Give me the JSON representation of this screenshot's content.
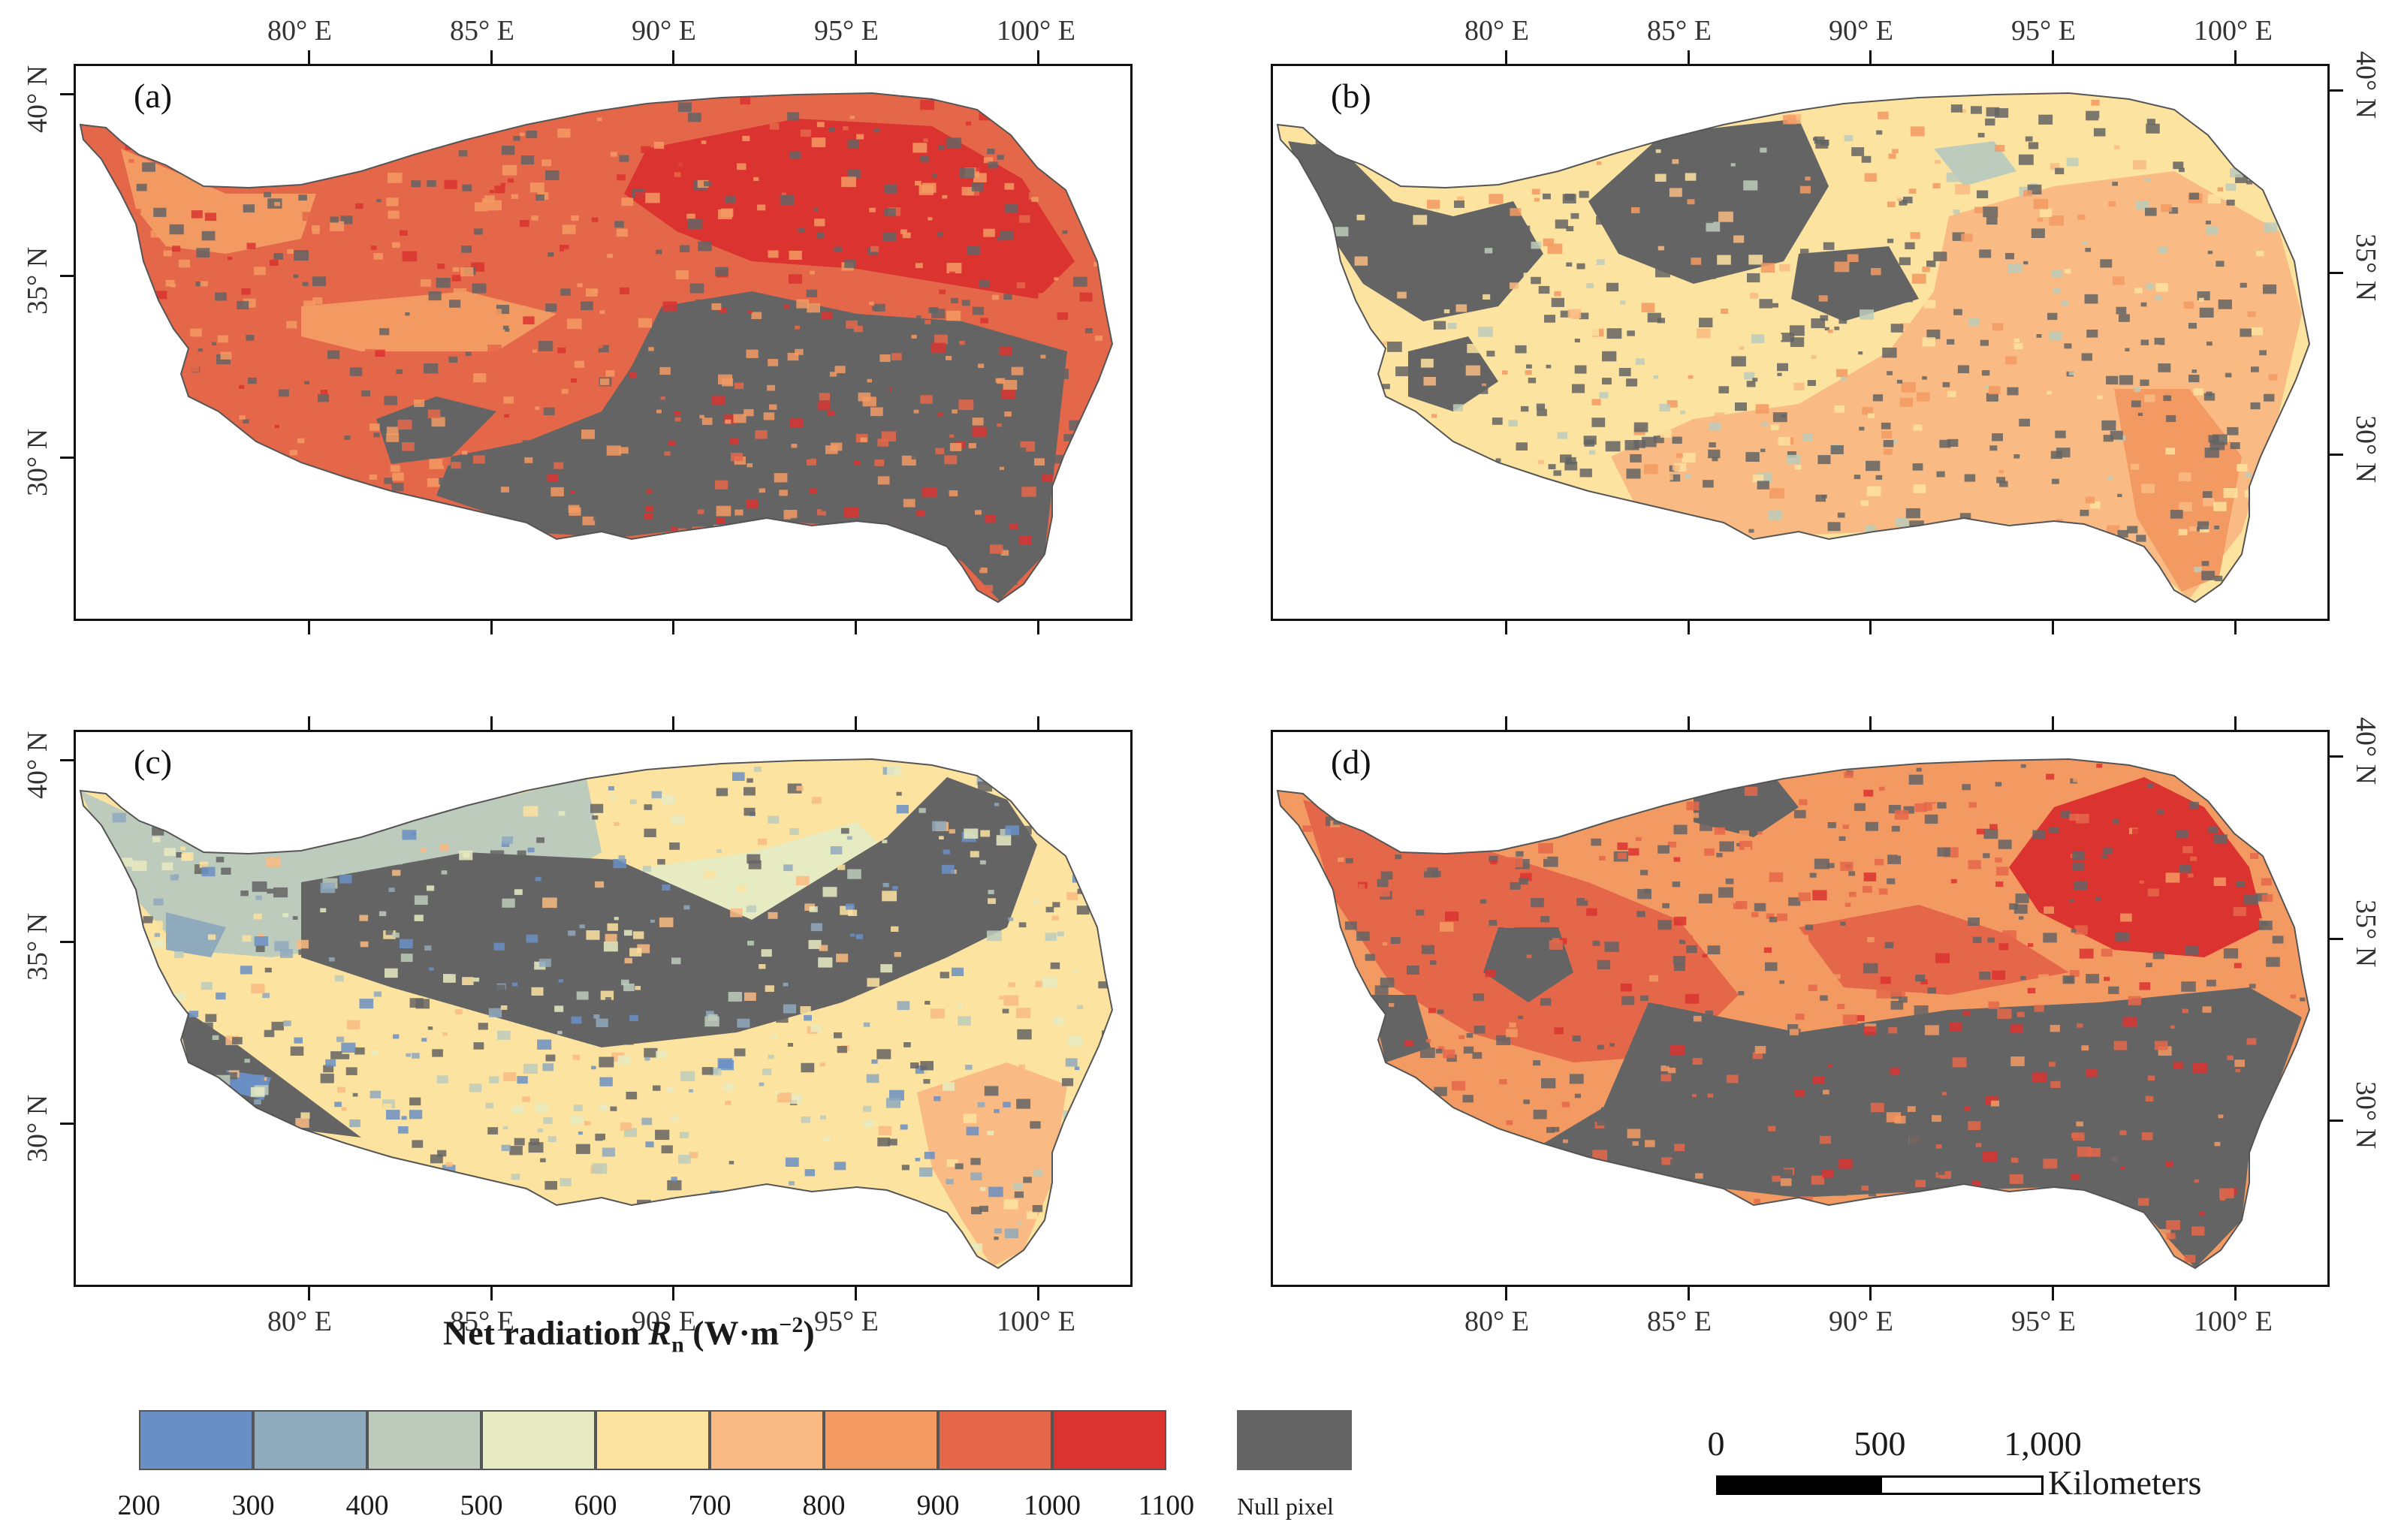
{
  "figure": {
    "panels": [
      {
        "id": "a",
        "label": "(a)",
        "scheme": "high_east",
        "top_axis_labels": [
          "80° E",
          "85° E",
          "90° E",
          "95° E",
          "100° E"
        ],
        "bottom_axis_labels": [],
        "left_axis_labels": [
          "40° N",
          "35° N",
          "30° N"
        ],
        "right_axis_labels": []
      },
      {
        "id": "b",
        "label": "(b)",
        "scheme": "mid_orange",
        "top_axis_labels": [
          "80° E",
          "85° E",
          "90° E",
          "95° E",
          "100° E"
        ],
        "bottom_axis_labels": [],
        "left_axis_labels": [],
        "right_axis_labels": [
          "40° N",
          "35° N",
          "30° N"
        ]
      },
      {
        "id": "c",
        "label": "(c)",
        "scheme": "low_green",
        "top_axis_labels": [],
        "bottom_axis_labels": [
          "80° E",
          "85° E",
          "90° E",
          "95° E",
          "100° E"
        ],
        "left_axis_labels": [
          "40° N",
          "35° N",
          "30° N"
        ],
        "right_axis_labels": []
      },
      {
        "id": "d",
        "label": "(d)",
        "scheme": "high_west",
        "top_axis_labels": [],
        "bottom_axis_labels": [
          "80° E",
          "85° E",
          "90° E",
          "95° E",
          "100° E"
        ],
        "left_axis_labels": [],
        "right_axis_labels": [
          "40° N",
          "35° N",
          "30° N"
        ]
      }
    ]
  },
  "legend": {
    "title_prefix": "Net radiation ",
    "title_symbol": "R",
    "title_subscript": "n",
    "title_unit": " (W·m",
    "title_exponent": "−2",
    "title_close": ")",
    "breaks": [
      "200",
      "300",
      "400",
      "500",
      "600",
      "700",
      "800",
      "900",
      "1000",
      "1100"
    ],
    "colors": [
      "#6a8fc4",
      "#8fa9bd",
      "#bccbbb",
      "#e7ebc1",
      "#fde3a0",
      "#f9bb83",
      "#f39a63",
      "#e5674a",
      "#db3430"
    ],
    "null_label": "Null pixel",
    "null_color": "#646464"
  },
  "scale_bar": {
    "ticks": [
      "0",
      "500",
      "1,000"
    ],
    "unit": "Kilometers"
  }
}
